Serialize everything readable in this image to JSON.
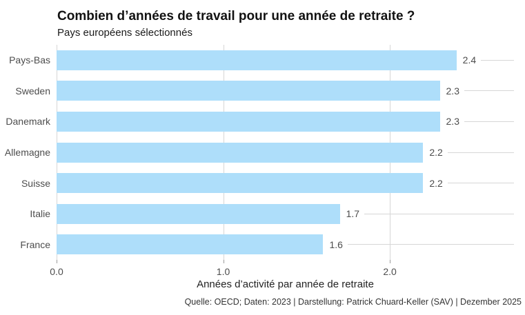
{
  "header": {
    "title": "Combien d’années de travail pour une année de retraite ?",
    "subtitle": "Pays européens sélectionnés"
  },
  "chart_data": {
    "type": "bar",
    "orientation": "horizontal",
    "categories": [
      "Pays-Bas",
      "Sweden",
      "Danemark",
      "Allemagne",
      "Suisse",
      "Italie",
      "France"
    ],
    "values": [
      2.4,
      2.3,
      2.3,
      2.2,
      2.2,
      1.7,
      1.6
    ],
    "value_labels": [
      "2.4",
      "2.3",
      "2.3",
      "2.2",
      "2.2",
      "1.7",
      "1.6"
    ],
    "title": "Combien d’années de travail pour une année de retraite ?",
    "subtitle": "Pays européens sélectionnés",
    "xlabel": "Années d’activité par année de retraite",
    "ylabel": "",
    "xlim": [
      0,
      2.745
    ],
    "xticks": [
      {
        "value": 0,
        "label": "0.0"
      },
      {
        "value": 1,
        "label": "1.0"
      },
      {
        "value": 2,
        "label": "2.0"
      }
    ],
    "grid": "vertical gridlines at ticks; horizontal line per row right of value label",
    "legend": "none",
    "bar_color": "#AEDEFA",
    "gridline_color": "#D6D6D6",
    "label_color": "#4C4C4C"
  },
  "footer": {
    "source": "Quelle: OECD; Daten: 2023 | Darstellung: Patrick Chuard-Keller (SAV) | Dezember 2025"
  }
}
